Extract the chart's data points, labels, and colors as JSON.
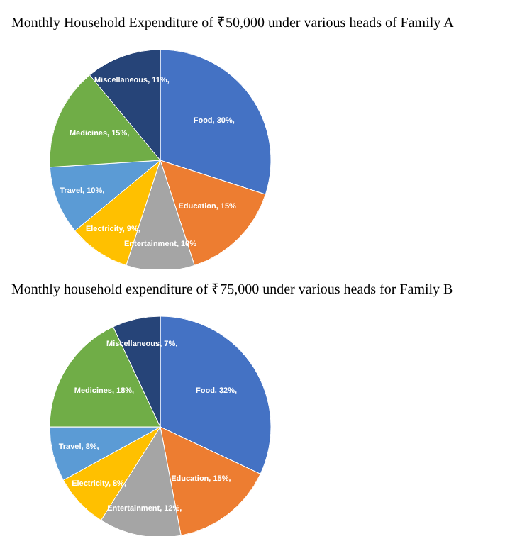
{
  "chart_data": [
    {
      "type": "pie",
      "title": "Monthly Household Expenditure of ₹50,000 under various heads of Family A",
      "categories": [
        "Food",
        "Education",
        "Entertainment",
        "Electricity",
        "Travel",
        "Medicines",
        "Miscellaneous"
      ],
      "values": [
        30,
        15,
        10,
        9,
        10,
        15,
        11
      ],
      "value_labels": [
        "30%,",
        "15%",
        "10%",
        "9%,",
        "10%,",
        "15%,",
        "11%,"
      ],
      "colors": [
        "#4472c4",
        "#ed7d31",
        "#a5a5a5",
        "#ffc000",
        "#5b9bd5",
        "#70ad47",
        "#264478"
      ],
      "legend": false
    },
    {
      "type": "pie",
      "title": "Monthly household expenditure of ₹75,000 under various heads for Family B",
      "categories": [
        "Food",
        "Education",
        "Entertainment",
        "Electricity",
        "Travel",
        "Medicines",
        "Miscellaneous"
      ],
      "values": [
        32,
        15,
        12,
        8,
        8,
        18,
        7
      ],
      "value_labels": [
        "32%,",
        "15%,",
        "12%,",
        "8%,",
        "8%,",
        "18%,",
        "7%,"
      ],
      "colors": [
        "#4472c4",
        "#ed7d31",
        "#a5a5a5",
        "#ffc000",
        "#5b9bd5",
        "#70ad47",
        "#264478"
      ],
      "legend": false
    }
  ]
}
